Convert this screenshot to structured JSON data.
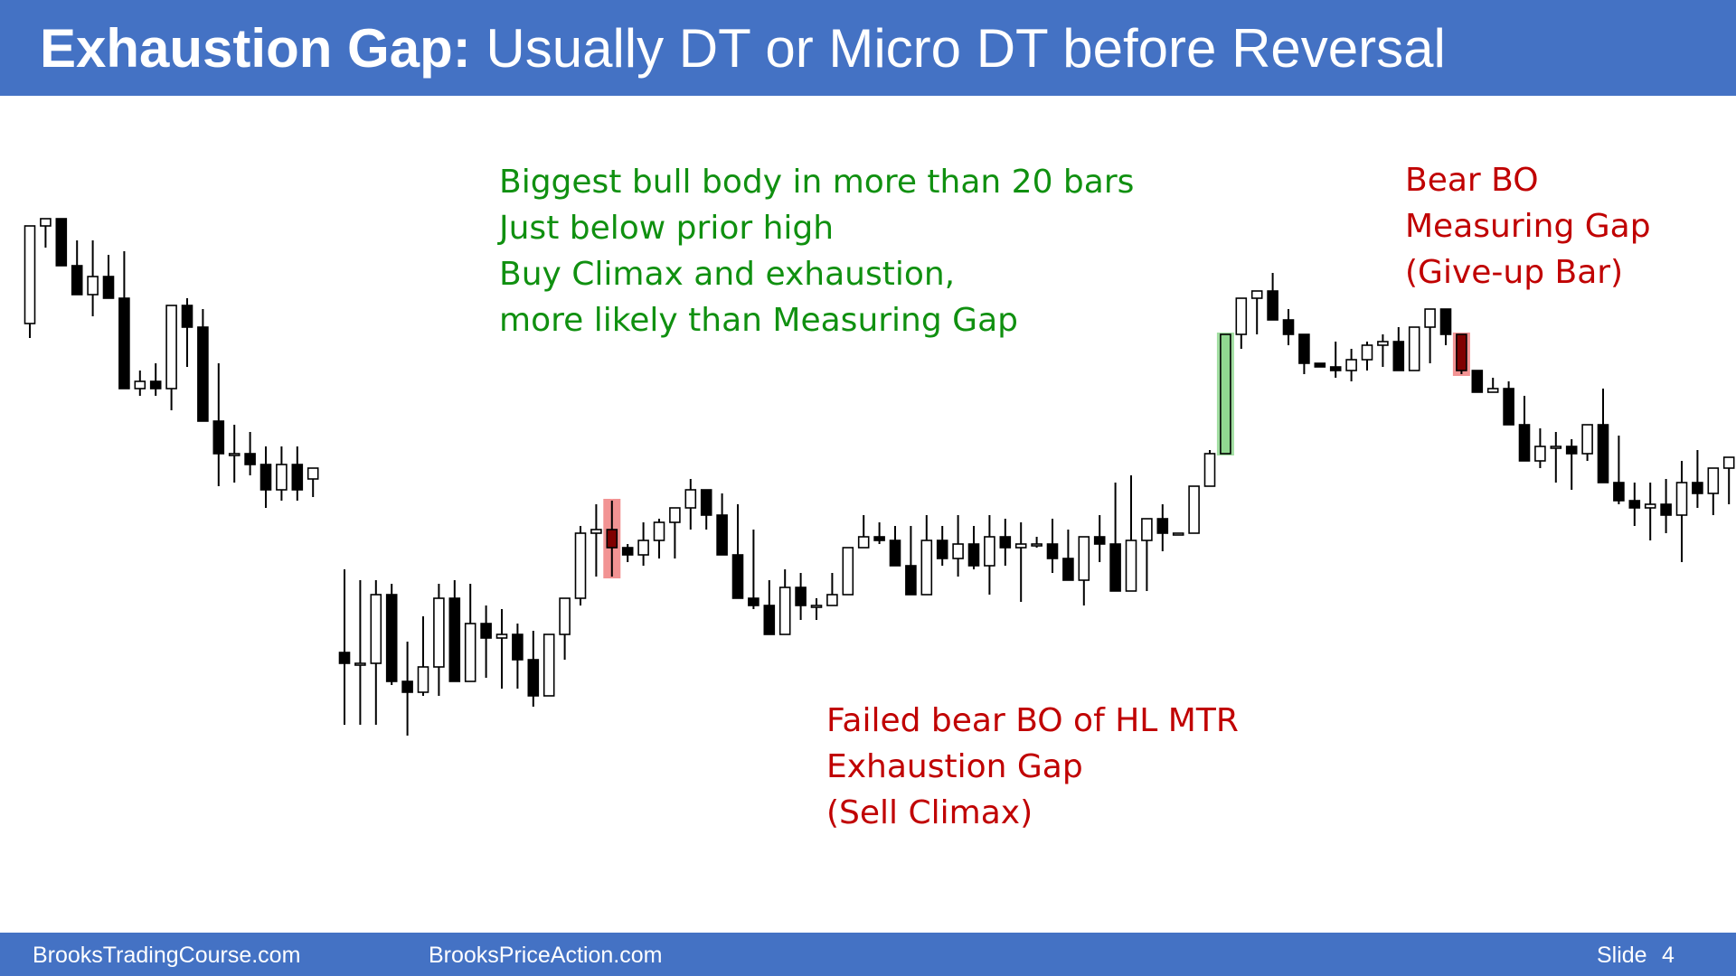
{
  "header": {
    "title_bold": "Exhaustion Gap:",
    "title_rest": " Usually DT or Micro DT before Reversal"
  },
  "footer": {
    "left_site": "BrooksTradingCourse.com",
    "mid_site": "BrooksPriceAction.com",
    "slide_label": "Slide",
    "slide_number": "4"
  },
  "annotations": {
    "bull_climax": [
      "Biggest bull body in more than 20 bars",
      "Just below prior high",
      "Buy Climax and exhaustion,",
      "more likely than Measuring Gap"
    ],
    "failed_bear_bo": [
      "Failed bear BO of HL MTR",
      "Exhaustion Gap",
      "(Sell Climax)"
    ],
    "bear_bo": [
      "Bear BO",
      "Measuring Gap",
      "(Give-up Bar)"
    ]
  },
  "colors": {
    "header_bg": "#4472C4",
    "annotation_green": "#109010",
    "annotation_red": "#C00000",
    "bull_highlight": "#90D890",
    "bear_highlight": "#F08080",
    "bear_body_dark": "#800000"
  },
  "chart_data": {
    "type": "candlestick",
    "price_unit": "relative price (0-100)",
    "yrange": [
      0,
      100
    ],
    "segments": [
      {
        "x_start": 0,
        "bars": [
          {
            "o": 42,
            "h": 20,
            "l": 46,
            "c": 15
          },
          {
            "o": 15,
            "h": 13,
            "l": 21,
            "c": 13
          },
          {
            "o": 13,
            "h": 13,
            "l": 20,
            "c": 26
          },
          {
            "o": 26,
            "h": 19,
            "l": 30,
            "c": 34
          },
          {
            "o": 34,
            "h": 19,
            "l": 40,
            "c": 29
          },
          {
            "o": 29,
            "h": 23,
            "l": 34,
            "c": 35
          },
          {
            "o": 35,
            "h": 22,
            "l": 50,
            "c": 60
          },
          {
            "o": 60,
            "h": 55,
            "l": 62,
            "c": 58
          },
          {
            "o": 58,
            "h": 53,
            "l": 62,
            "c": 60
          },
          {
            "o": 60,
            "h": 37,
            "l": 66,
            "c": 37
          },
          {
            "o": 37,
            "h": 35,
            "l": 54,
            "c": 43
          },
          {
            "o": 43,
            "h": 38,
            "l": 66,
            "c": 69
          },
          {
            "o": 69,
            "h": 53,
            "l": 87,
            "c": 78
          },
          {
            "o": 78,
            "h": 70,
            "l": 86,
            "c": 78
          },
          {
            "o": 78,
            "h": 72,
            "l": 84,
            "c": 81
          },
          {
            "o": 81,
            "h": 76,
            "l": 93,
            "c": 88
          },
          {
            "o": 88,
            "h": 76,
            "l": 91,
            "c": 81
          },
          {
            "o": 81,
            "h": 76,
            "l": 91,
            "c": 88
          },
          {
            "o": 85,
            "h": 83,
            "l": 90,
            "c": 82
          }
        ]
      },
      {
        "x_start": 20,
        "bars": [
          {
            "o": 133,
            "h": 110,
            "l": 153,
            "c": 136
          },
          {
            "o": 136,
            "h": 113,
            "l": 153,
            "c": 136
          },
          {
            "o": 136,
            "h": 113,
            "l": 153,
            "c": 117
          },
          {
            "o": 117,
            "h": 114,
            "l": 142,
            "c": 141
          },
          {
            "o": 141,
            "h": 130,
            "l": 156,
            "c": 144
          },
          {
            "o": 144,
            "h": 123,
            "l": 145,
            "c": 137
          },
          {
            "o": 137,
            "h": 114,
            "l": 145,
            "c": 118
          },
          {
            "o": 118,
            "h": 113,
            "l": 137,
            "c": 141
          },
          {
            "o": 141,
            "h": 114,
            "l": 140,
            "c": 125
          },
          {
            "o": 125,
            "h": 120,
            "l": 140,
            "c": 129
          },
          {
            "o": 129,
            "h": 121,
            "l": 143,
            "c": 128
          },
          {
            "o": 128,
            "h": 125,
            "l": 143,
            "c": 135
          },
          {
            "o": 135,
            "h": 127,
            "l": 148,
            "c": 145
          },
          {
            "o": 145,
            "h": 128,
            "l": 142,
            "c": 128
          },
          {
            "o": 128,
            "h": 124,
            "l": 135,
            "c": 118
          },
          {
            "o": 118,
            "h": 98,
            "l": 120,
            "c": 100
          },
          {
            "o": 100,
            "h": 92,
            "l": 112,
            "c": 99
          },
          {
            "o": 99,
            "h": 91,
            "l": 112,
            "c": 104
          },
          {
            "o": 104,
            "h": 103,
            "l": 108,
            "c": 106
          },
          {
            "o": 106,
            "h": 97,
            "l": 109,
            "c": 102
          },
          {
            "o": 102,
            "h": 96,
            "l": 107,
            "c": 97
          },
          {
            "o": 97,
            "h": 93,
            "l": 107,
            "c": 93
          },
          {
            "o": 93,
            "h": 85,
            "l": 99,
            "c": 88
          },
          {
            "o": 88,
            "h": 88,
            "l": 99,
            "c": 95
          },
          {
            "o": 95,
            "h": 89,
            "l": 100,
            "c": 106
          },
          {
            "o": 106,
            "h": 92,
            "l": 110,
            "c": 118
          },
          {
            "o": 118,
            "h": 99,
            "l": 121,
            "c": 120
          },
          {
            "o": 120,
            "h": 113,
            "l": 124,
            "c": 128
          },
          {
            "o": 128,
            "h": 110,
            "l": 128,
            "c": 115
          },
          {
            "o": 115,
            "h": 111,
            "l": 124,
            "c": 120
          },
          {
            "o": 120,
            "h": 118,
            "l": 124,
            "c": 120
          },
          {
            "o": 120,
            "h": 111,
            "l": 116,
            "c": 117
          },
          {
            "o": 117,
            "h": 111,
            "l": 116,
            "c": 104
          },
          {
            "o": 104,
            "h": 95,
            "l": 104,
            "c": 101
          },
          {
            "o": 101,
            "h": 97,
            "l": 103,
            "c": 102
          },
          {
            "o": 102,
            "h": 98,
            "l": 104,
            "c": 109
          },
          {
            "o": 109,
            "h": 98,
            "l": 115,
            "c": 117
          },
          {
            "o": 117,
            "h": 95,
            "l": 117,
            "c": 102
          },
          {
            "o": 102,
            "h": 98,
            "l": 109,
            "c": 107
          },
          {
            "o": 107,
            "h": 95,
            "l": 112,
            "c": 103
          },
          {
            "o": 103,
            "h": 98,
            "l": 110,
            "c": 109
          },
          {
            "o": 109,
            "h": 95,
            "l": 117,
            "c": 101
          },
          {
            "o": 101,
            "h": 96,
            "l": 109,
            "c": 104
          },
          {
            "o": 104,
            "h": 97,
            "l": 119,
            "c": 103
          },
          {
            "o": 103,
            "h": 101,
            "l": 104,
            "c": 103
          },
          {
            "o": 103,
            "h": 96,
            "l": 111,
            "c": 107
          },
          {
            "o": 107,
            "h": 99,
            "l": 110,
            "c": 113
          },
          {
            "o": 113,
            "h": 102,
            "l": 120,
            "c": 101
          },
          {
            "o": 101,
            "h": 95,
            "l": 108,
            "c": 103
          },
          {
            "o": 103,
            "h": 86,
            "l": 111,
            "c": 116
          },
          {
            "o": 116,
            "h": 84,
            "l": 112,
            "c": 102
          },
          {
            "o": 102,
            "h": 99,
            "l": 116,
            "c": 96
          },
          {
            "o": 96,
            "h": 92,
            "l": 105,
            "c": 100
          },
          {
            "o": 100,
            "h": 100,
            "l": 100,
            "c": 100
          },
          {
            "o": 100,
            "h": 90,
            "l": 100,
            "c": 87
          },
          {
            "o": 87,
            "h": 77,
            "l": 82,
            "c": 78
          },
          {
            "o": 78,
            "h": 49,
            "l": 74,
            "c": 45
          },
          {
            "o": 45,
            "h": 40,
            "l": 49,
            "c": 35
          },
          {
            "o": 35,
            "h": 33,
            "l": 45,
            "c": 33
          },
          {
            "o": 33,
            "h": 28,
            "l": 39,
            "c": 41
          },
          {
            "o": 41,
            "h": 38,
            "l": 48,
            "c": 45
          },
          {
            "o": 45,
            "h": 45,
            "l": 56,
            "c": 53
          },
          {
            "o": 53,
            "h": 54,
            "l": 54,
            "c": 54
          },
          {
            "o": 54,
            "h": 47,
            "l": 57,
            "c": 55
          },
          {
            "o": 55,
            "h": 49,
            "l": 58,
            "c": 52
          },
          {
            "o": 52,
            "h": 47,
            "l": 55,
            "c": 48
          },
          {
            "o": 48,
            "h": 45,
            "l": 54,
            "c": 47
          },
          {
            "o": 47,
            "h": 43,
            "l": 54,
            "c": 55
          },
          {
            "o": 55,
            "h": 43,
            "l": 50,
            "c": 43
          },
          {
            "o": 43,
            "h": 42,
            "l": 53,
            "c": 38
          },
          {
            "o": 38,
            "h": 38,
            "l": 48,
            "c": 45
          },
          {
            "o": 45,
            "h": 56,
            "l": 56,
            "c": 55
          },
          {
            "o": 55,
            "h": 56,
            "l": 56,
            "c": 61
          },
          {
            "o": 61,
            "h": 57,
            "l": 60,
            "c": 60
          },
          {
            "o": 60,
            "h": 58,
            "l": 65,
            "c": 70
          },
          {
            "o": 70,
            "h": 62,
            "l": 80,
            "c": 80
          },
          {
            "o": 80,
            "h": 71,
            "l": 82,
            "c": 76
          },
          {
            "o": 76,
            "h": 72,
            "l": 86,
            "c": 76
          },
          {
            "o": 76,
            "h": 74,
            "l": 88,
            "c": 78
          },
          {
            "o": 78,
            "h": 74,
            "l": 80,
            "c": 70
          },
          {
            "o": 70,
            "h": 60,
            "l": 84,
            "c": 86
          },
          {
            "o": 86,
            "h": 73,
            "l": 92,
            "c": 91
          },
          {
            "o": 91,
            "h": 86,
            "l": 98,
            "c": 93
          },
          {
            "o": 93,
            "h": 86,
            "l": 102,
            "c": 92
          },
          {
            "o": 92,
            "h": 85,
            "l": 100,
            "c": 95
          },
          {
            "o": 95,
            "h": 80,
            "l": 108,
            "c": 86
          },
          {
            "o": 86,
            "h": 77,
            "l": 93,
            "c": 89
          },
          {
            "o": 89,
            "h": 84,
            "l": 95,
            "c": 82
          },
          {
            "o": 82,
            "h": 82,
            "l": 92,
            "c": 79
          }
        ]
      }
    ],
    "highlights": [
      {
        "segment": 1,
        "bar": 17,
        "kind": "bear",
        "label_ref": "failed_bear_bo"
      },
      {
        "segment": 1,
        "bar": 56,
        "kind": "bull",
        "label_ref": "bull_climax"
      },
      {
        "segment": 1,
        "bar": 71,
        "kind": "bear",
        "label_ref": "bear_bo"
      }
    ]
  }
}
